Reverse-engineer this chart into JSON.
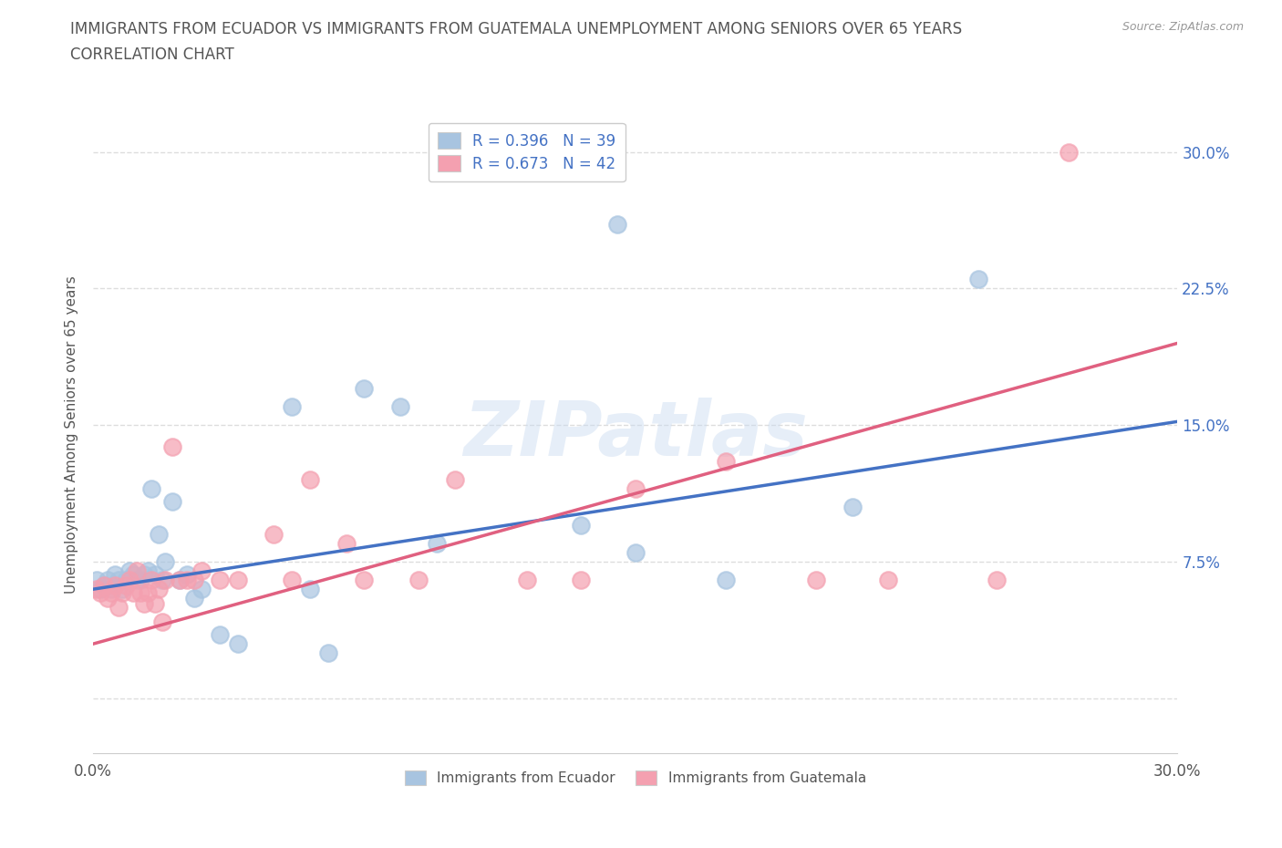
{
  "title_line1": "IMMIGRANTS FROM ECUADOR VS IMMIGRANTS FROM GUATEMALA UNEMPLOYMENT AMONG SENIORS OVER 65 YEARS",
  "title_line2": "CORRELATION CHART",
  "source": "Source: ZipAtlas.com",
  "ylabel": "Unemployment Among Seniors over 65 years",
  "xlim": [
    0.0,
    0.3
  ],
  "ylim": [
    -0.03,
    0.32
  ],
  "xticks": [
    0.0,
    0.05,
    0.1,
    0.15,
    0.2,
    0.25,
    0.3
  ],
  "ytick_vals": [
    0.0,
    0.075,
    0.15,
    0.225,
    0.3
  ],
  "ytick_labels_right": [
    "",
    "7.5%",
    "15.0%",
    "22.5%",
    "30.0%"
  ],
  "R_ecuador": 0.396,
  "N_ecuador": 39,
  "R_guatemala": 0.673,
  "N_guatemala": 42,
  "ecuador_color": "#a8c4e0",
  "guatemala_color": "#f4a0b0",
  "ecuador_line_color": "#4472c4",
  "guatemala_line_color": "#e06080",
  "watermark": "ZIPatlas",
  "ecuador_x": [
    0.001,
    0.002,
    0.003,
    0.004,
    0.005,
    0.006,
    0.007,
    0.008,
    0.009,
    0.01,
    0.011,
    0.012,
    0.013,
    0.014,
    0.015,
    0.016,
    0.017,
    0.018,
    0.019,
    0.02,
    0.022,
    0.024,
    0.026,
    0.028,
    0.03,
    0.035,
    0.04,
    0.055,
    0.06,
    0.065,
    0.075,
    0.085,
    0.095,
    0.135,
    0.145,
    0.15,
    0.175,
    0.21,
    0.245
  ],
  "ecuador_y": [
    0.065,
    0.06,
    0.062,
    0.065,
    0.06,
    0.068,
    0.065,
    0.06,
    0.065,
    0.07,
    0.068,
    0.065,
    0.065,
    0.068,
    0.07,
    0.115,
    0.068,
    0.09,
    0.065,
    0.075,
    0.108,
    0.065,
    0.068,
    0.055,
    0.06,
    0.035,
    0.03,
    0.16,
    0.06,
    0.025,
    0.17,
    0.16,
    0.085,
    0.095,
    0.26,
    0.08,
    0.065,
    0.105,
    0.23
  ],
  "guatemala_x": [
    0.001,
    0.002,
    0.003,
    0.004,
    0.005,
    0.006,
    0.007,
    0.008,
    0.009,
    0.01,
    0.011,
    0.012,
    0.013,
    0.014,
    0.015,
    0.016,
    0.017,
    0.018,
    0.019,
    0.02,
    0.022,
    0.024,
    0.026,
    0.028,
    0.03,
    0.035,
    0.04,
    0.05,
    0.055,
    0.06,
    0.07,
    0.075,
    0.09,
    0.1,
    0.12,
    0.135,
    0.15,
    0.175,
    0.2,
    0.22,
    0.25,
    0.27
  ],
  "guatemala_y": [
    0.06,
    0.058,
    0.062,
    0.055,
    0.058,
    0.062,
    0.05,
    0.058,
    0.062,
    0.065,
    0.058,
    0.07,
    0.058,
    0.052,
    0.058,
    0.065,
    0.052,
    0.06,
    0.042,
    0.065,
    0.138,
    0.065,
    0.065,
    0.065,
    0.07,
    0.065,
    0.065,
    0.09,
    0.065,
    0.12,
    0.085,
    0.065,
    0.065,
    0.12,
    0.065,
    0.065,
    0.115,
    0.13,
    0.065,
    0.065,
    0.065,
    0.3
  ],
  "bg_color": "#ffffff",
  "grid_color": "#dddddd",
  "title_color": "#555555",
  "axis_label_color": "#555555",
  "right_tick_color": "#4472c4",
  "legend_R_color": "#4472c4",
  "ecuador_line_x0": 0.0,
  "ecuador_line_y0": 0.06,
  "ecuador_line_x1": 0.3,
  "ecuador_line_y1": 0.152,
  "guatemala_line_x0": 0.0,
  "guatemala_line_y0": 0.03,
  "guatemala_line_x1": 0.3,
  "guatemala_line_y1": 0.195
}
